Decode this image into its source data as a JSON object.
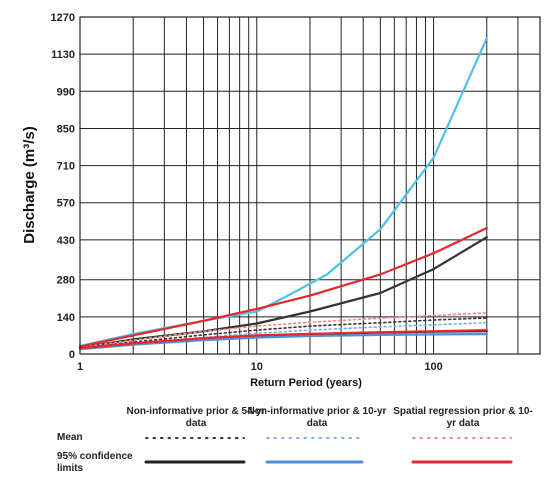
{
  "chart_data": {
    "type": "line",
    "ylabel": "Discharge (m³/s)",
    "xlabel": "Return Period (years)",
    "x_scale": "log",
    "xlim": [
      1,
      400
    ],
    "ylim": [
      0,
      1270
    ],
    "x_ticks": [
      1,
      10,
      100
    ],
    "y_ticks": [
      0,
      140,
      280,
      430,
      570,
      710,
      850,
      990,
      1130,
      1270
    ],
    "grid": true,
    "colors": {
      "noninformative_54yr": "#222222",
      "noninformative_10yr": "#4a90d9",
      "upper_10yr": "#4fc0e8",
      "spatial_regression": "#e8262c",
      "spatial_regression_mean": "#f08a8a"
    },
    "series": [
      {
        "legend_group": 1,
        "kind": "mean",
        "style": "dotted",
        "color": "#333333",
        "x": [
          1,
          2,
          5,
          10,
          20,
          50,
          100,
          200
        ],
        "y": [
          22,
          45,
          72,
          90,
          105,
          118,
          128,
          136
        ]
      },
      {
        "legend_group": 1,
        "kind": "lower",
        "style": "solid",
        "color": "#222222",
        "x": [
          1,
          2,
          5,
          10,
          20,
          50,
          100,
          200
        ],
        "y": [
          20,
          38,
          58,
          68,
          75,
          81,
          84,
          86
        ]
      },
      {
        "legend_group": 1,
        "kind": "upper",
        "style": "solid",
        "color": "#333333",
        "x": [
          1,
          2,
          5,
          10,
          20,
          50,
          100,
          200
        ],
        "y": [
          24,
          55,
          85,
          115,
          160,
          230,
          320,
          440
        ]
      },
      {
        "legend_group": 2,
        "kind": "mean",
        "style": "dotted",
        "color": "#7eb0e8",
        "x": [
          1,
          2,
          5,
          10,
          20,
          50,
          100,
          200
        ],
        "y": [
          20,
          40,
          62,
          78,
          90,
          102,
          110,
          118
        ]
      },
      {
        "legend_group": 2,
        "kind": "lower",
        "style": "solid",
        "color": "#4a90d9",
        "x": [
          1,
          2,
          5,
          10,
          20,
          50,
          100,
          200
        ],
        "y": [
          18,
          35,
          52,
          62,
          68,
          72,
          74,
          75
        ]
      },
      {
        "legend_group": 2,
        "kind": "upper",
        "style": "solid",
        "color": "#4fc0e8",
        "x": [
          1,
          2,
          5,
          10,
          15,
          25,
          50,
          100,
          200
        ],
        "y": [
          30,
          75,
          125,
          160,
          220,
          300,
          470,
          740,
          1190
        ]
      },
      {
        "legend_group": 3,
        "kind": "mean",
        "style": "dotted",
        "color": "#f08a8a",
        "x": [
          1,
          2,
          5,
          10,
          20,
          50,
          100,
          200
        ],
        "y": [
          25,
          52,
          85,
          105,
          120,
          135,
          145,
          155
        ]
      },
      {
        "legend_group": 3,
        "kind": "lower",
        "style": "solid",
        "color": "#e8262c",
        "x": [
          1,
          2,
          5,
          10,
          20,
          50,
          100,
          200
        ],
        "y": [
          22,
          40,
          60,
          70,
          76,
          82,
          86,
          90
        ]
      },
      {
        "legend_group": 3,
        "kind": "upper",
        "style": "solid",
        "color": "#e8262c",
        "x": [
          1,
          2,
          5,
          10,
          20,
          50,
          100,
          200
        ],
        "y": [
          28,
          70,
          125,
          170,
          220,
          300,
          380,
          475
        ]
      }
    ]
  },
  "legend": {
    "headers": [
      "Non-informative prior & 54-yr data",
      "Non-informative prior & 10-yr data",
      "Spatial regression prior & 10-yr data"
    ],
    "rows": {
      "mean": "Mean",
      "ci": "95% confidence limits"
    }
  }
}
